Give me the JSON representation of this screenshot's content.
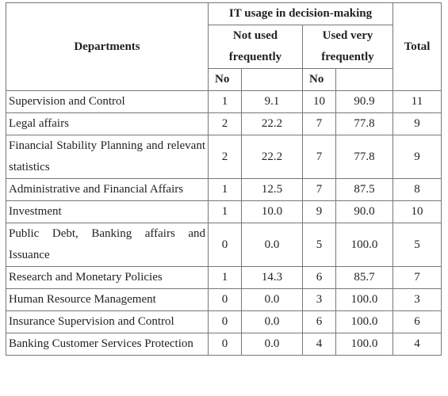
{
  "table": {
    "header": {
      "departments": "Departments",
      "group": "IT usage in decision-making",
      "not_used": "Not used frequently",
      "used": "Used very frequently",
      "total": "Total",
      "no": "No",
      "pct": ""
    },
    "rows": [
      {
        "dept": "Supervision and Control",
        "n1": "1",
        "p1": "9.1",
        "n2": "10",
        "p2": "90.9",
        "total": "11"
      },
      {
        "dept": "Legal affairs",
        "n1": "2",
        "p1": "22.2",
        "n2": "7",
        "p2": "77.8",
        "total": "9"
      },
      {
        "dept": "Financial Stability Planning and relevant statistics",
        "n1": "2",
        "p1": "22.2",
        "n2": "7",
        "p2": "77.8",
        "total": "9"
      },
      {
        "dept": "Administrative and Financial Affairs",
        "n1": "1",
        "p1": "12.5",
        "n2": "7",
        "p2": "87.5",
        "total": "8"
      },
      {
        "dept": "Investment",
        "n1": "1",
        "p1": "10.0",
        "n2": "9",
        "p2": "90.0",
        "total": "10"
      },
      {
        "dept": "Public Debt, Banking affairs and Issuance",
        "n1": "0",
        "p1": "0.0",
        "n2": "5",
        "p2": "100.0",
        "total": "5"
      },
      {
        "dept": "Research and Monetary Policies",
        "n1": "1",
        "p1": "14.3",
        "n2": "6",
        "p2": "85.7",
        "total": "7"
      },
      {
        "dept": "Human Resource Management",
        "n1": "0",
        "p1": "0.0",
        "n2": "3",
        "p2": "100.0",
        "total": "3"
      },
      {
        "dept": "Insurance Supervision and Control",
        "n1": "0",
        "p1": "0.0",
        "n2": "6",
        "p2": "100.0",
        "total": "6"
      },
      {
        "dept": "Banking Customer Services Protection",
        "n1": "0",
        "p1": "0.0",
        "n2": "4",
        "p2": "100.0",
        "total": "4"
      }
    ]
  }
}
